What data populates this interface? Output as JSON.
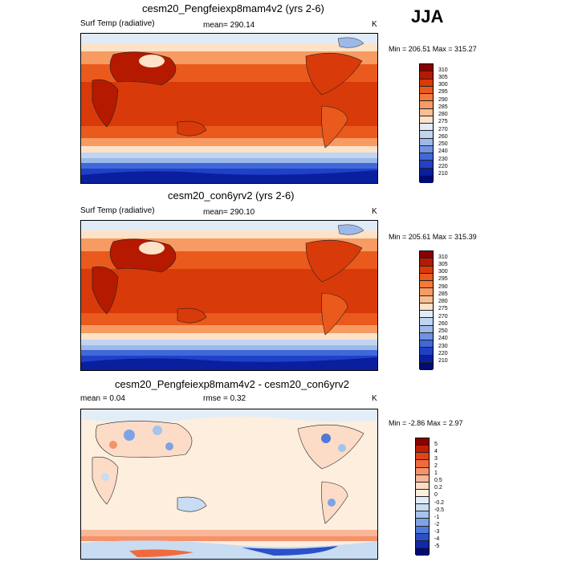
{
  "season": "JJA",
  "panels": [
    {
      "title": "cesm20_Pengfeiexp8mam4v2 (yrs 2-6)",
      "left_label": "Surf Temp (radiative)",
      "mid_label": "mean= 290.14",
      "units": "K",
      "minmax": "Min = 206.51 Max = 315.27"
    },
    {
      "title": "cesm20_con6yrv2 (yrs 2-6)",
      "left_label": "Surf Temp (radiative)",
      "mid_label": "mean= 290.10",
      "units": "K",
      "minmax": "Min = 205.61 Max = 315.39"
    },
    {
      "title": "cesm20_Pengfeiexp8mam4v2 - cesm20_con6yrv2",
      "left_label": "mean =   0.04",
      "mid_label": "rmse =   0.32",
      "units": "K",
      "minmax": "Min =  -2.86 Max =   2.97"
    }
  ],
  "colorbar_abs": {
    "labels": [
      "310",
      "305",
      "300",
      "295",
      "290",
      "285",
      "280",
      "275",
      "270",
      "260",
      "250",
      "240",
      "230",
      "220",
      "210"
    ],
    "colors": [
      "#8b0000",
      "#b51a00",
      "#d93a0a",
      "#ea5a1c",
      "#f27a3c",
      "#f79b62",
      "#fabe93",
      "#fde2c8",
      "#e1ebf7",
      "#c2d5f0",
      "#9db9ea",
      "#6f92e2",
      "#4068d8",
      "#1f40c8",
      "#0a1f9e",
      "#000c72"
    ]
  },
  "colorbar_diff": {
    "labels": [
      "5",
      "4",
      "3",
      "2",
      "1",
      "0.5",
      "0.2",
      "0",
      "-0.2",
      "-0.5",
      "-1",
      "-2",
      "-3",
      "-4",
      "-5"
    ],
    "colors": [
      "#8b0000",
      "#c11f00",
      "#e0441a",
      "#f06a3c",
      "#f5926a",
      "#f9b797",
      "#fcdcc6",
      "#fdeede",
      "#e3edf8",
      "#c8dcf2",
      "#a5c3ec",
      "#7ca3e4",
      "#5079d9",
      "#2c50c8",
      "#1229a8",
      "#000c72"
    ]
  },
  "chart_data": [
    {
      "type": "heatmap",
      "title": "cesm20_Pengfeiexp8mam4v2 (yrs 2-6)",
      "variable": "Surf Temp (radiative)",
      "units": "K",
      "mean": 290.14,
      "min": 206.51,
      "max": 315.27,
      "levels": [
        210,
        220,
        230,
        240,
        250,
        260,
        270,
        275,
        280,
        285,
        290,
        295,
        300,
        305,
        310
      ]
    },
    {
      "type": "heatmap",
      "title": "cesm20_con6yrv2 (yrs 2-6)",
      "variable": "Surf Temp (radiative)",
      "units": "K",
      "mean": 290.1,
      "min": 205.61,
      "max": 315.39,
      "levels": [
        210,
        220,
        230,
        240,
        250,
        260,
        270,
        275,
        280,
        285,
        290,
        295,
        300,
        305,
        310
      ]
    },
    {
      "type": "heatmap",
      "title": "cesm20_Pengfeiexp8mam4v2 - cesm20_con6yrv2",
      "units": "K",
      "mean": 0.04,
      "rmse": 0.32,
      "min": -2.86,
      "max": 2.97,
      "levels": [
        -5,
        -4,
        -3,
        -2,
        -1,
        -0.5,
        -0.2,
        0,
        0.2,
        0.5,
        1,
        2,
        3,
        4,
        5
      ]
    }
  ]
}
